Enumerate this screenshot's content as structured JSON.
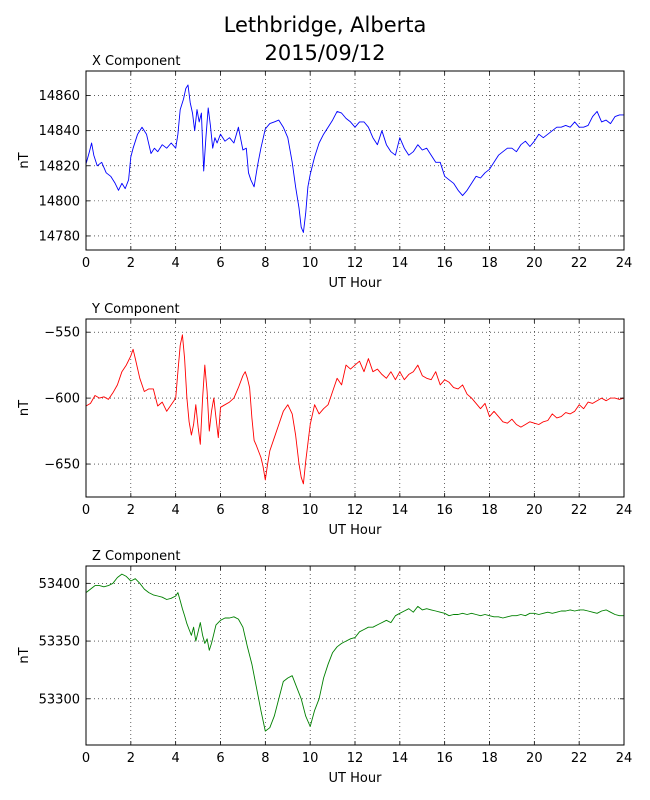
{
  "figure": {
    "title_line1": "Lethbridge, Alberta",
    "title_line2": "2015/09/12"
  },
  "chart_data": [
    {
      "type": "line",
      "panel_title": "X Component",
      "xlabel": "UT Hour",
      "ylabel": "nT",
      "xlim": [
        0,
        24
      ],
      "ylim": [
        14772,
        14874
      ],
      "xticks": [
        0,
        2,
        4,
        6,
        8,
        10,
        12,
        14,
        16,
        18,
        20,
        22,
        24
      ],
      "yticks": [
        14780,
        14800,
        14820,
        14840,
        14860
      ],
      "grid": true,
      "color": "#0000ff",
      "series": [
        {
          "x": [
            0,
            0.15,
            0.25,
            0.35,
            0.5,
            0.7,
            0.9,
            1.1,
            1.3,
            1.45,
            1.6,
            1.75,
            1.9,
            2.0,
            2.1,
            2.3,
            2.5,
            2.7,
            2.9,
            3.05,
            3.2,
            3.4,
            3.6,
            3.8,
            4.0,
            4.1,
            4.2,
            4.35,
            4.45,
            4.55,
            4.65,
            4.75,
            4.85,
            4.95,
            5.05,
            5.15,
            5.25,
            5.35,
            5.45,
            5.55,
            5.65,
            5.75,
            5.85,
            6.0,
            6.2,
            6.4,
            6.6,
            6.8,
            7.0,
            7.15,
            7.25,
            7.35,
            7.5,
            7.65,
            7.8,
            8.0,
            8.2,
            8.4,
            8.6,
            8.8,
            9.0,
            9.2,
            9.35,
            9.5,
            9.6,
            9.7,
            9.8,
            9.9,
            10.0,
            10.2,
            10.4,
            10.6,
            10.8,
            11.0,
            11.2,
            11.4,
            11.6,
            11.8,
            12.0,
            12.2,
            12.4,
            12.6,
            12.8,
            13.0,
            13.2,
            13.4,
            13.6,
            13.8,
            14.0,
            14.2,
            14.4,
            14.6,
            14.8,
            15.0,
            15.2,
            15.4,
            15.6,
            15.8,
            16.0,
            16.2,
            16.4,
            16.6,
            16.8,
            17.0,
            17.2,
            17.4,
            17.6,
            17.8,
            18.0,
            18.2,
            18.4,
            18.6,
            18.8,
            19.0,
            19.2,
            19.4,
            19.6,
            19.8,
            20.0,
            20.2,
            20.4,
            20.6,
            20.8,
            21.0,
            21.2,
            21.4,
            21.6,
            21.8,
            22.0,
            22.2,
            22.4,
            22.6,
            22.8,
            23.0,
            23.2,
            23.4,
            23.6,
            23.8,
            24.0
          ],
          "y": [
            14821,
            14828,
            14833,
            14826,
            14820,
            14822,
            14816,
            14814,
            14810,
            14806,
            14810,
            14807,
            14812,
            14825,
            14830,
            14838,
            14842,
            14838,
            14827,
            14830,
            14828,
            14832,
            14830,
            14833,
            14830,
            14838,
            14852,
            14858,
            14864,
            14866,
            14856,
            14850,
            14840,
            14852,
            14845,
            14850,
            14817,
            14836,
            14853,
            14843,
            14830,
            14836,
            14833,
            14838,
            14834,
            14836,
            14833,
            14842,
            14829,
            14830,
            14816,
            14812,
            14808,
            14820,
            14830,
            14841,
            14844,
            14845,
            14846,
            14842,
            14836,
            14822,
            14808,
            14796,
            14785,
            14782,
            14793,
            14808,
            14815,
            14825,
            14833,
            14838,
            14842,
            14846,
            14851,
            14850,
            14847,
            14845,
            14842,
            14845,
            14845,
            14842,
            14836,
            14832,
            14840,
            14832,
            14828,
            14826,
            14836,
            14830,
            14826,
            14828,
            14832,
            14829,
            14830,
            14826,
            14822,
            14822,
            14814,
            14812,
            14810,
            14806,
            14803,
            14806,
            14810,
            14814,
            14813,
            14816,
            14818,
            14822,
            14826,
            14828,
            14830,
            14830,
            14828,
            14832,
            14834,
            14831,
            14834,
            14838,
            14836,
            14838,
            14840,
            14842,
            14842,
            14843,
            14842,
            14845,
            14842,
            14842,
            14843,
            14848,
            14851,
            14845,
            14846,
            14844,
            14848,
            14849,
            14849
          ]
        }
      ]
    },
    {
      "type": "line",
      "panel_title": "Y Component",
      "xlabel": "UT Hour",
      "ylabel": "nT",
      "xlim": [
        0,
        24
      ],
      "ylim": [
        -675,
        -540
      ],
      "xticks": [
        0,
        2,
        4,
        6,
        8,
        10,
        12,
        14,
        16,
        18,
        20,
        22,
        24
      ],
      "yticks": [
        -550,
        -600,
        -650
      ],
      "grid": true,
      "color": "#ff0000",
      "series": [
        {
          "x": [
            0,
            0.2,
            0.4,
            0.6,
            0.8,
            1.0,
            1.2,
            1.4,
            1.6,
            1.8,
            2.0,
            2.1,
            2.2,
            2.4,
            2.6,
            2.8,
            3.0,
            3.2,
            3.4,
            3.6,
            3.8,
            4.0,
            4.1,
            4.2,
            4.3,
            4.4,
            4.5,
            4.6,
            4.7,
            4.8,
            4.9,
            5.0,
            5.1,
            5.2,
            5.3,
            5.4,
            5.5,
            5.6,
            5.7,
            5.8,
            5.9,
            6.0,
            6.2,
            6.4,
            6.6,
            6.8,
            7.0,
            7.1,
            7.2,
            7.3,
            7.4,
            7.5,
            7.6,
            7.8,
            7.9,
            8.0,
            8.1,
            8.2,
            8.4,
            8.6,
            8.8,
            9.0,
            9.2,
            9.35,
            9.5,
            9.6,
            9.7,
            9.8,
            10.0,
            10.2,
            10.4,
            10.6,
            10.8,
            11.0,
            11.2,
            11.4,
            11.6,
            11.8,
            12.0,
            12.2,
            12.4,
            12.6,
            12.8,
            13.0,
            13.2,
            13.4,
            13.6,
            13.8,
            14.0,
            14.2,
            14.4,
            14.6,
            14.8,
            15.0,
            15.2,
            15.4,
            15.6,
            15.8,
            16.0,
            16.2,
            16.4,
            16.6,
            16.8,
            17.0,
            17.2,
            17.4,
            17.6,
            17.8,
            18.0,
            18.2,
            18.4,
            18.6,
            18.8,
            19.0,
            19.2,
            19.4,
            19.6,
            19.8,
            20.0,
            20.2,
            20.4,
            20.6,
            20.8,
            21.0,
            21.2,
            21.4,
            21.6,
            21.8,
            22.0,
            22.2,
            22.4,
            22.6,
            22.8,
            23.0,
            23.2,
            23.4,
            23.6,
            23.8,
            24.0
          ],
          "y": [
            -606,
            -604,
            -598,
            -600,
            -599,
            -601,
            -596,
            -590,
            -580,
            -575,
            -568,
            -563,
            -570,
            -585,
            -595,
            -593,
            -593,
            -606,
            -603,
            -610,
            -605,
            -600,
            -580,
            -560,
            -552,
            -570,
            -600,
            -618,
            -628,
            -620,
            -605,
            -622,
            -635,
            -600,
            -575,
            -595,
            -625,
            -610,
            -600,
            -615,
            -630,
            -607,
            -605,
            -603,
            -600,
            -592,
            -583,
            -580,
            -585,
            -592,
            -615,
            -632,
            -636,
            -645,
            -652,
            -662,
            -650,
            -640,
            -630,
            -620,
            -610,
            -605,
            -612,
            -628,
            -650,
            -660,
            -665,
            -648,
            -620,
            -605,
            -612,
            -608,
            -605,
            -595,
            -585,
            -590,
            -575,
            -578,
            -575,
            -572,
            -580,
            -570,
            -580,
            -578,
            -582,
            -585,
            -580,
            -586,
            -580,
            -586,
            -582,
            -580,
            -575,
            -583,
            -585,
            -586,
            -580,
            -590,
            -586,
            -588,
            -592,
            -593,
            -590,
            -597,
            -600,
            -604,
            -608,
            -604,
            -614,
            -610,
            -614,
            -618,
            -619,
            -616,
            -620,
            -622,
            -620,
            -618,
            -619,
            -620,
            -618,
            -617,
            -612,
            -615,
            -614,
            -611,
            -612,
            -610,
            -605,
            -608,
            -603,
            -604,
            -602,
            -600,
            -602,
            -600,
            -600,
            -601,
            -600
          ]
        }
      ]
    },
    {
      "type": "line",
      "panel_title": "Z Component",
      "xlabel": "UT Hour",
      "ylabel": "nT",
      "xlim": [
        0,
        24
      ],
      "ylim": [
        53260,
        53415
      ],
      "xticks": [
        0,
        2,
        4,
        6,
        8,
        10,
        12,
        14,
        16,
        18,
        20,
        22,
        24
      ],
      "yticks": [
        53300,
        53350,
        53400
      ],
      "grid": true,
      "color": "#008000",
      "series": [
        {
          "x": [
            0,
            0.2,
            0.4,
            0.6,
            0.8,
            1.0,
            1.2,
            1.4,
            1.6,
            1.8,
            2.0,
            2.2,
            2.4,
            2.6,
            2.8,
            3.0,
            3.2,
            3.4,
            3.6,
            3.8,
            4.0,
            4.1,
            4.2,
            4.3,
            4.4,
            4.5,
            4.6,
            4.7,
            4.8,
            4.9,
            5.0,
            5.1,
            5.2,
            5.3,
            5.4,
            5.5,
            5.6,
            5.8,
            6.0,
            6.2,
            6.4,
            6.6,
            6.8,
            7.0,
            7.2,
            7.4,
            7.6,
            7.8,
            8.0,
            8.2,
            8.4,
            8.6,
            8.8,
            9.0,
            9.2,
            9.4,
            9.6,
            9.8,
            10.0,
            10.2,
            10.4,
            10.6,
            10.8,
            11.0,
            11.2,
            11.4,
            11.6,
            11.8,
            12.0,
            12.2,
            12.4,
            12.6,
            12.8,
            13.0,
            13.2,
            13.4,
            13.6,
            13.8,
            14.0,
            14.2,
            14.4,
            14.6,
            14.8,
            15.0,
            15.2,
            15.4,
            15.6,
            15.8,
            16.0,
            16.2,
            16.4,
            16.6,
            16.8,
            17.0,
            17.2,
            17.4,
            17.6,
            17.8,
            18.0,
            18.2,
            18.4,
            18.6,
            18.8,
            19.0,
            19.2,
            19.4,
            19.6,
            19.8,
            20.0,
            20.2,
            20.4,
            20.6,
            20.8,
            21.0,
            21.2,
            21.4,
            21.6,
            21.8,
            22.0,
            22.2,
            22.4,
            22.6,
            22.8,
            23.0,
            23.2,
            23.4,
            23.6,
            23.8,
            24.0
          ],
          "y": [
            53392,
            53395,
            53398,
            53398,
            53397,
            53398,
            53400,
            53405,
            53408,
            53406,
            53402,
            53404,
            53400,
            53395,
            53392,
            53390,
            53389,
            53388,
            53386,
            53387,
            53389,
            53392,
            53385,
            53378,
            53372,
            53365,
            53360,
            53355,
            53362,
            53350,
            53358,
            53366,
            53355,
            53348,
            53352,
            53342,
            53348,
            53364,
            53368,
            53370,
            53370,
            53371,
            53369,
            53362,
            53345,
            53330,
            53310,
            53290,
            53272,
            53275,
            53285,
            53300,
            53315,
            53318,
            53320,
            53310,
            53300,
            53285,
            53276,
            53290,
            53300,
            53318,
            53330,
            53340,
            53345,
            53348,
            53350,
            53352,
            53353,
            53358,
            53360,
            53362,
            53362,
            53364,
            53366,
            53368,
            53366,
            53372,
            53374,
            53376,
            53378,
            53375,
            53380,
            53377,
            53378,
            53377,
            53376,
            53375,
            53374,
            53372,
            53373,
            53373,
            53374,
            53373,
            53374,
            53373,
            53372,
            53373,
            53372,
            53371,
            53371,
            53370,
            53371,
            53372,
            53372,
            53373,
            53372,
            53374,
            53374,
            53373,
            53374,
            53375,
            53374,
            53375,
            53376,
            53376,
            53377,
            53376,
            53377,
            53377,
            53376,
            53375,
            53374,
            53376,
            53377,
            53375,
            53373,
            53372,
            53372
          ]
        }
      ]
    }
  ]
}
